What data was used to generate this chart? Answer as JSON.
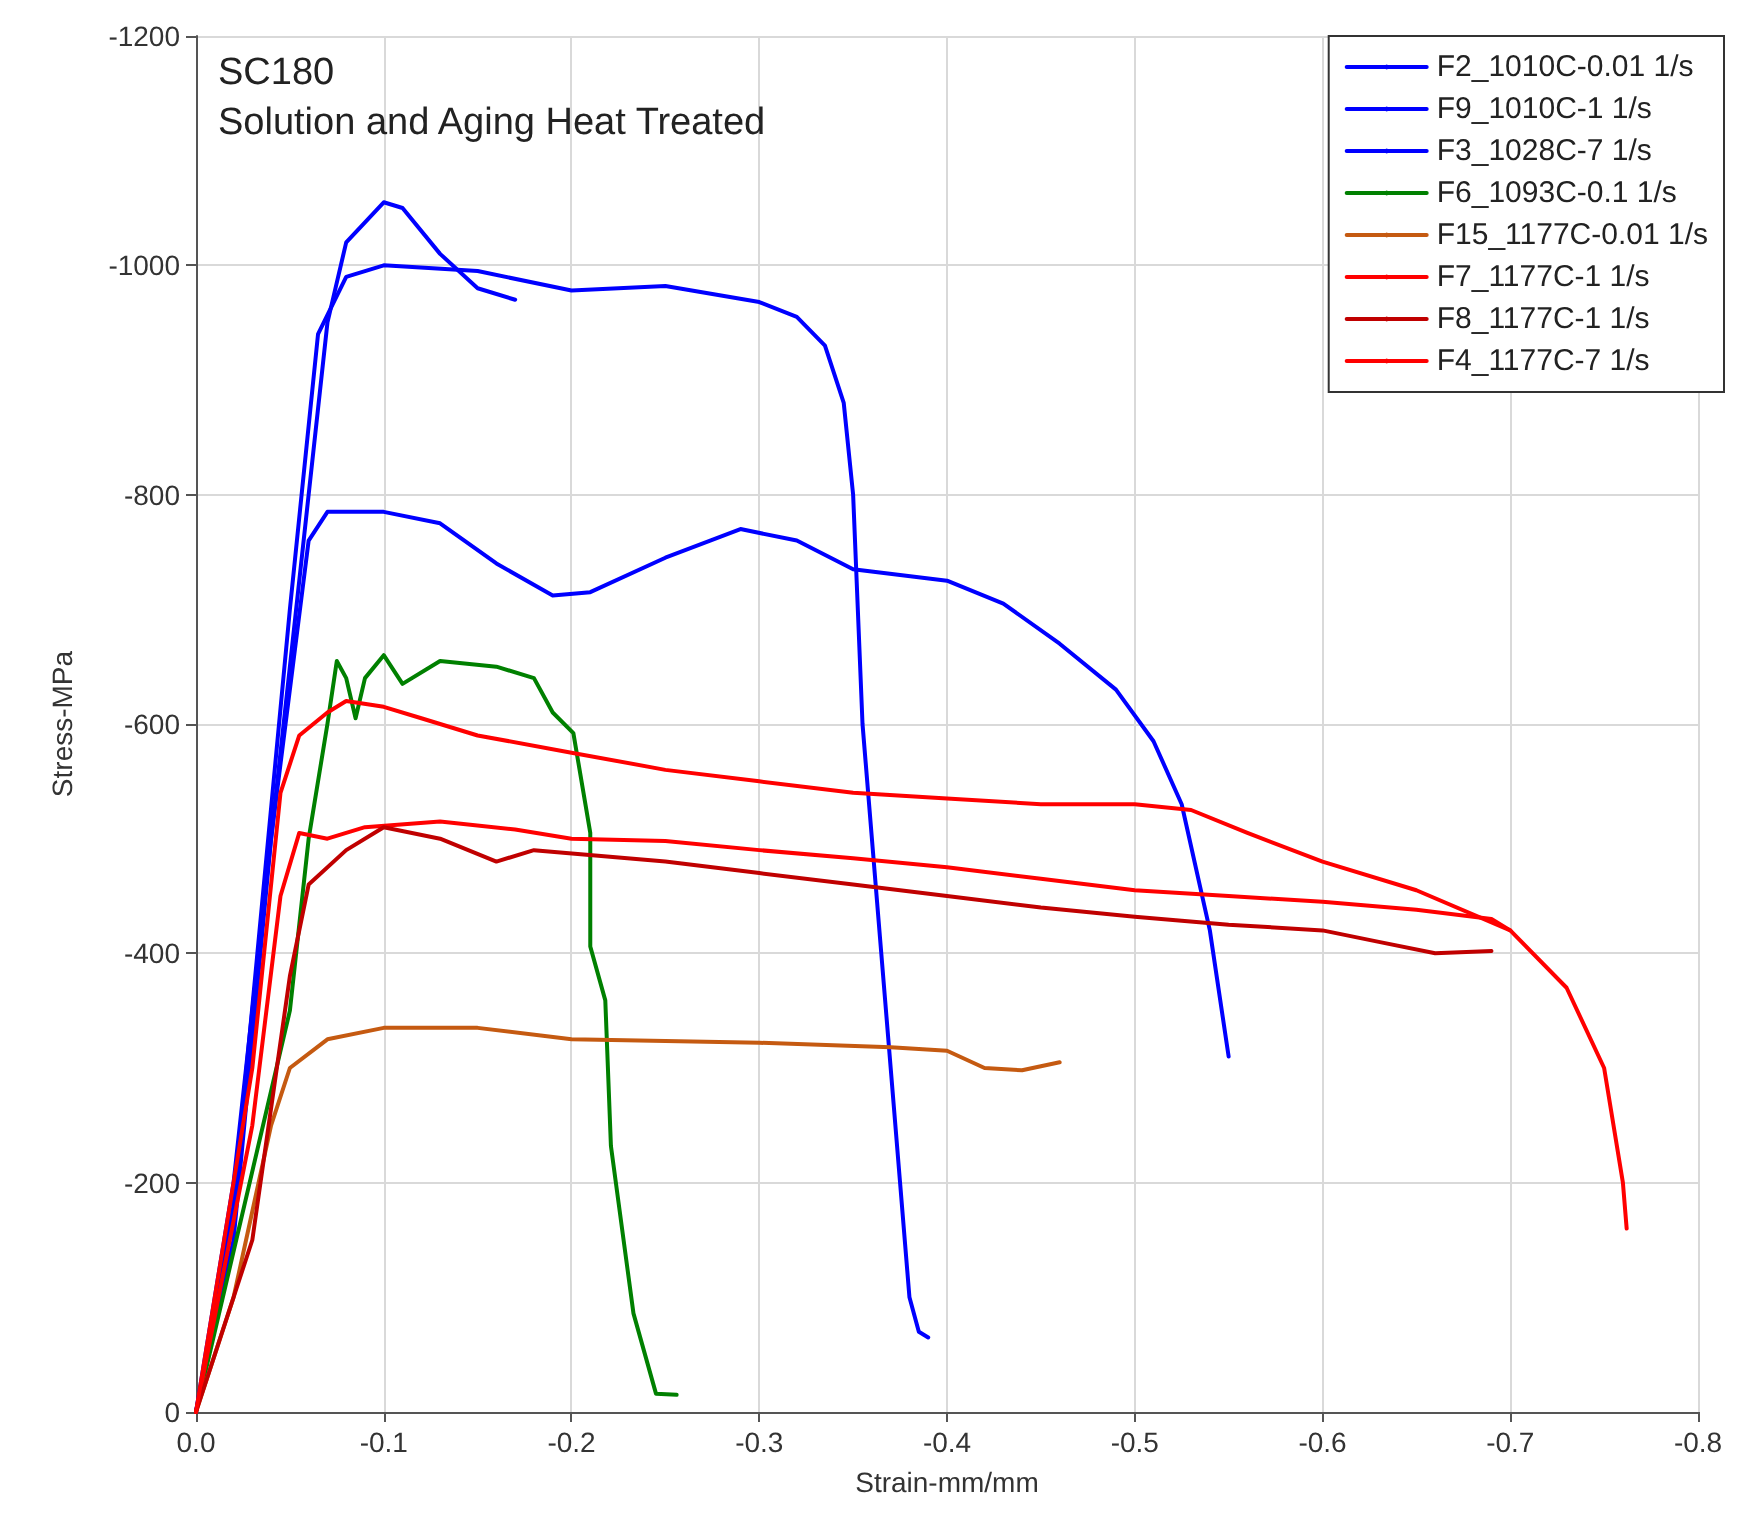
{
  "chart_data": {
    "type": "line",
    "title": "SC180",
    "subtitle": "Solution and Aging Heat Treated",
    "xlabel": "Strain-mm/mm",
    "ylabel": "Stress-MPa",
    "xlim": [
      0,
      -0.8
    ],
    "ylim": [
      0,
      -1200
    ],
    "xticks": [
      {
        "value": 0,
        "label": "0.0"
      },
      -0.1,
      -0.2,
      -0.3,
      -0.4,
      -0.5,
      -0.6,
      -0.7,
      -0.8
    ],
    "yticks": [
      0,
      -200,
      -400,
      -600,
      -800,
      -1000,
      -1200
    ],
    "grid": true,
    "legend": "top right",
    "marker": "none",
    "line_style": "solid",
    "series": [
      {
        "name": "F2_1010C-0.01 1/s",
        "color": "#0000ff",
        "x": [
          0,
          -0.02,
          -0.04,
          -0.06,
          -0.07,
          -0.1,
          -0.13,
          -0.16,
          -0.19,
          -0.21,
          -0.25,
          -0.29,
          -0.32,
          -0.35,
          -0.4,
          -0.43,
          -0.46,
          -0.49,
          -0.51,
          -0.525,
          -0.54,
          -0.55
        ],
        "values": [
          0,
          -150,
          -500,
          -760,
          -785,
          -785,
          -775,
          -740,
          -712,
          -715,
          -745,
          -770,
          -760,
          -735,
          -725,
          -705,
          -670,
          -630,
          -585,
          -530,
          -420,
          -310
        ]
      },
      {
        "name": "F9_1010C-1 1/s",
        "color": "#0000ff",
        "x": [
          0,
          -0.02,
          -0.05,
          -0.07,
          -0.08,
          -0.1,
          -0.11,
          -0.13,
          -0.15,
          -0.17
        ],
        "values": [
          0,
          -200,
          -650,
          -950,
          -1020,
          -1055,
          -1050,
          -1010,
          -980,
          -970
        ]
      },
      {
        "name": "F3_1028C-7 1/s",
        "color": "#0000ff",
        "x": [
          0,
          -0.02,
          -0.05,
          -0.065,
          -0.08,
          -0.1,
          -0.15,
          -0.2,
          -0.25,
          -0.3,
          -0.32,
          -0.335,
          -0.345,
          -0.35,
          -0.355,
          -0.365,
          -0.375,
          -0.38,
          -0.385,
          -0.39
        ],
        "values": [
          0,
          -180,
          -700,
          -940,
          -990,
          -1000,
          -995,
          -978,
          -982,
          -968,
          -955,
          -930,
          -880,
          -800,
          -600,
          -400,
          -200,
          -100,
          -70,
          -65
        ]
      },
      {
        "name": "F6_1093C-0.1 1/s",
        "color": "#008000",
        "x": [
          0,
          -0.05,
          -0.06,
          -0.07,
          -0.075,
          -0.08,
          -0.085,
          -0.09,
          -0.1,
          -0.11,
          -0.13,
          -0.16,
          -0.18,
          -0.19,
          -0.201,
          -0.21,
          -0.21,
          -0.218,
          -0.221,
          -0.233,
          -0.245,
          -0.256
        ],
        "values": [
          0,
          -350,
          -500,
          -600,
          -655,
          -640,
          -605,
          -640,
          -660,
          -635,
          -655,
          -650,
          -640,
          -610,
          -592,
          -505,
          -406,
          -359,
          -232,
          -86,
          -16,
          -15
        ]
      },
      {
        "name": "F15_1177C-0.01 1/s",
        "color": "#c55a11",
        "x": [
          0,
          -0.02,
          -0.04,
          -0.05,
          -0.07,
          -0.1,
          -0.15,
          -0.2,
          -0.3,
          -0.37,
          -0.4,
          -0.42,
          -0.44,
          -0.46
        ],
        "values": [
          0,
          -100,
          -250,
          -300,
          -325,
          -335,
          -335,
          -325,
          -322,
          -318,
          -315,
          -300,
          -298,
          -305
        ]
      },
      {
        "name": "F7_1177C-1 1/s",
        "color": "#ff0000",
        "x": [
          0,
          -0.03,
          -0.045,
          -0.055,
          -0.07,
          -0.09,
          -0.13,
          -0.17,
          -0.2,
          -0.25,
          -0.3,
          -0.35,
          -0.4,
          -0.45,
          -0.5,
          -0.55,
          -0.6,
          -0.65,
          -0.69,
          -0.7
        ],
        "values": [
          0,
          -250,
          -450,
          -505,
          -500,
          -510,
          -515,
          -508,
          -500,
          -498,
          -490,
          -483,
          -475,
          -465,
          -455,
          -450,
          -445,
          -438,
          -430,
          -420
        ]
      },
      {
        "name": "F8_1177C-1 1/s",
        "color": "#c00000",
        "x": [
          0,
          -0.03,
          -0.05,
          -0.06,
          -0.08,
          -0.1,
          -0.13,
          -0.16,
          -0.18,
          -0.25,
          -0.3,
          -0.35,
          -0.4,
          -0.45,
          -0.5,
          -0.55,
          -0.6,
          -0.63,
          -0.66,
          -0.69
        ],
        "values": [
          0,
          -150,
          -380,
          -460,
          -490,
          -510,
          -500,
          -480,
          -490,
          -480,
          -470,
          -460,
          -450,
          -440,
          -432,
          -425,
          -420,
          -410,
          -400,
          -402
        ]
      },
      {
        "name": "F4_1177C-7 1/s",
        "color": "#ff0000",
        "x": [
          0,
          -0.03,
          -0.045,
          -0.055,
          -0.07,
          -0.08,
          -0.1,
          -0.12,
          -0.15,
          -0.2,
          -0.25,
          -0.3,
          -0.35,
          -0.4,
          -0.45,
          -0.5,
          -0.53,
          -0.56,
          -0.6,
          -0.65,
          -0.7,
          -0.73,
          -0.75,
          -0.76,
          -0.762
        ],
        "values": [
          0,
          -300,
          -540,
          -590,
          -610,
          -620,
          -615,
          -605,
          -590,
          -575,
          -560,
          -550,
          -540,
          -535,
          -530,
          -530,
          -525,
          -505,
          -480,
          -455,
          -420,
          -370,
          -300,
          -200,
          -160
        ]
      }
    ]
  }
}
